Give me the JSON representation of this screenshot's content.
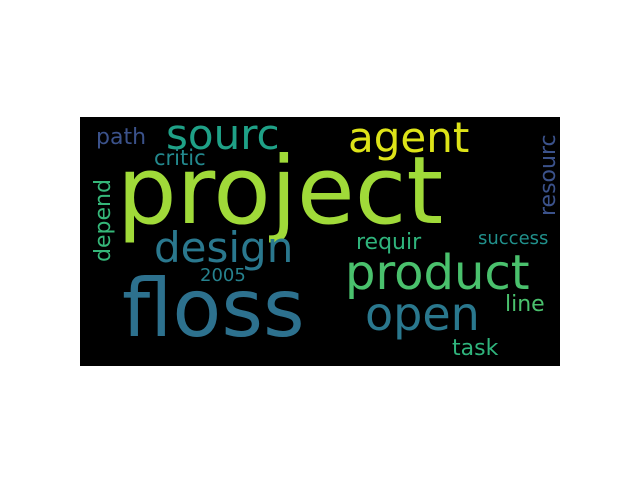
{
  "wordcloud": {
    "background": "#000000",
    "words": [
      {
        "id": "project",
        "text": "project",
        "color": "#a0da39",
        "rotated": false
      },
      {
        "id": "floss",
        "text": "floss",
        "color": "#2d718e",
        "rotated": false
      },
      {
        "id": "product",
        "text": "product",
        "color": "#4ac16d",
        "rotated": false
      },
      {
        "id": "design",
        "text": "design",
        "color": "#2a788e",
        "rotated": false
      },
      {
        "id": "sourc",
        "text": "sourc",
        "color": "#1fa187",
        "rotated": false
      },
      {
        "id": "agent",
        "text": "agent",
        "color": "#dde318",
        "rotated": false
      },
      {
        "id": "open",
        "text": "open",
        "color": "#2a788e",
        "rotated": false
      },
      {
        "id": "path",
        "text": "path",
        "color": "#3b528b",
        "rotated": false
      },
      {
        "id": "critic",
        "text": "critic",
        "color": "#23898e",
        "rotated": false
      },
      {
        "id": "resourc",
        "text": "resourc",
        "color": "#3b528b",
        "rotated": true
      },
      {
        "id": "depend",
        "text": "depend",
        "color": "#35b779",
        "rotated": true
      },
      {
        "id": "requir",
        "text": "requir",
        "color": "#2fb47c",
        "rotated": false
      },
      {
        "id": "success",
        "text": "success",
        "color": "#21918c",
        "rotated": false
      },
      {
        "id": "2005",
        "text": "2005",
        "color": "#26828e",
        "rotated": false
      },
      {
        "id": "line",
        "text": "line",
        "color": "#4ac16d",
        "rotated": false
      },
      {
        "id": "task",
        "text": "task",
        "color": "#2fb47c",
        "rotated": false
      }
    ]
  }
}
